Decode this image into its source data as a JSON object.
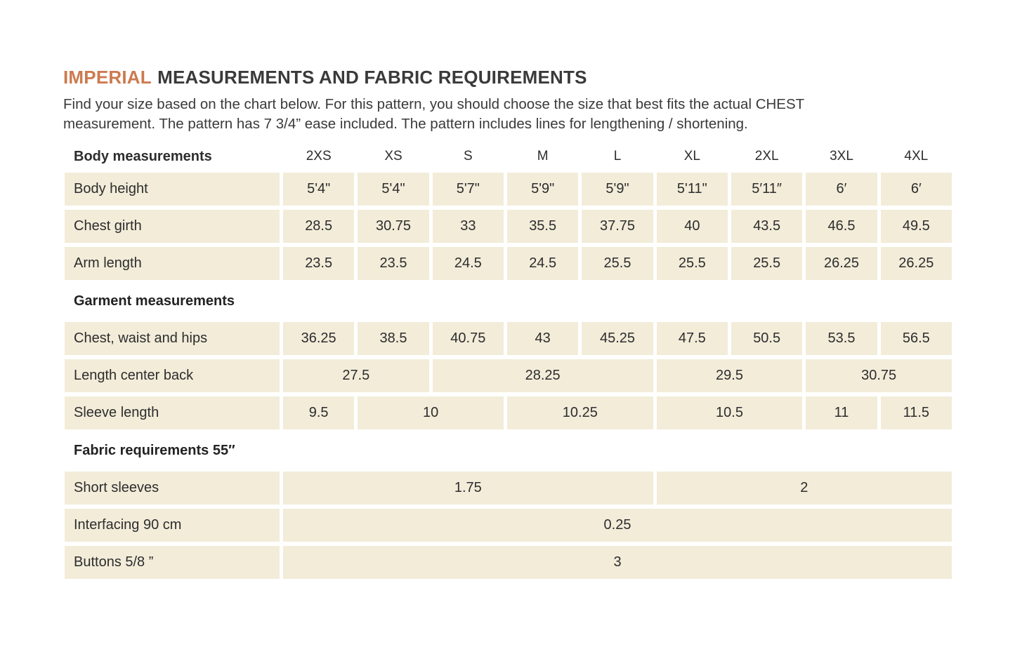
{
  "page": {
    "title_accent": "IMPERIAL",
    "title_rest": "MEASUREMENTS AND FABRIC REQUIREMENTS",
    "intro_lines": [
      "Find your size based on the chart below. For this pattern, you should choose the size that best fits the actual CHEST",
      "measurement. The pattern has 7 3/4” ease included. The pattern includes lines for lengthening / shortening."
    ]
  },
  "colors": {
    "accent": "#cd7a50",
    "cell_bg": "#f2ecd9",
    "text": "#2f2f2f"
  },
  "table": {
    "corner_label": "Body measurements",
    "sizes": [
      "2XS",
      "XS",
      "S",
      "M",
      "L",
      "XL",
      "2XL",
      "3XL",
      "4XL"
    ],
    "rows": [
      {
        "kind": "data",
        "label": "Body height",
        "cells": [
          {
            "text": "5'4\"",
            "span": 1
          },
          {
            "text": "5'4\"",
            "span": 1
          },
          {
            "text": "5'7\"",
            "span": 1
          },
          {
            "text": "5'9\"",
            "span": 1
          },
          {
            "text": "5'9\"",
            "span": 1
          },
          {
            "text": "5'11\"",
            "span": 1
          },
          {
            "text": "5′11″",
            "span": 1
          },
          {
            "text": "6′",
            "span": 1
          },
          {
            "text": "6′",
            "span": 1
          }
        ]
      },
      {
        "kind": "data",
        "label": "Chest girth",
        "cells": [
          {
            "text": "28.5",
            "span": 1
          },
          {
            "text": "30.75",
            "span": 1
          },
          {
            "text": "33",
            "span": 1
          },
          {
            "text": "35.5",
            "span": 1
          },
          {
            "text": "37.75",
            "span": 1
          },
          {
            "text": "40",
            "span": 1
          },
          {
            "text": "43.5",
            "span": 1
          },
          {
            "text": "46.5",
            "span": 1
          },
          {
            "text": "49.5",
            "span": 1
          }
        ]
      },
      {
        "kind": "data",
        "label": "Arm length",
        "cells": [
          {
            "text": "23.5",
            "span": 1
          },
          {
            "text": "23.5",
            "span": 1
          },
          {
            "text": "24.5",
            "span": 1
          },
          {
            "text": "24.5",
            "span": 1
          },
          {
            "text": "25.5",
            "span": 1
          },
          {
            "text": "25.5",
            "span": 1
          },
          {
            "text": "25.5",
            "span": 1
          },
          {
            "text": "26.25",
            "span": 1
          },
          {
            "text": "26.25",
            "span": 1
          }
        ]
      },
      {
        "kind": "section",
        "label": "Garment measurements"
      },
      {
        "kind": "data",
        "label": "Chest, waist and hips",
        "cells": [
          {
            "text": "36.25",
            "span": 1
          },
          {
            "text": "38.5",
            "span": 1
          },
          {
            "text": "40.75",
            "span": 1
          },
          {
            "text": "43",
            "span": 1
          },
          {
            "text": "45.25",
            "span": 1
          },
          {
            "text": "47.5",
            "span": 1
          },
          {
            "text": "50.5",
            "span": 1
          },
          {
            "text": "53.5",
            "span": 1
          },
          {
            "text": "56.5",
            "span": 1
          }
        ]
      },
      {
        "kind": "data",
        "label": "Length center back",
        "cells": [
          {
            "text": "27.5",
            "span": 2
          },
          {
            "text": "28.25",
            "span": 3
          },
          {
            "text": "29.5",
            "span": 2
          },
          {
            "text": "30.75",
            "span": 2
          }
        ]
      },
      {
        "kind": "data",
        "label": "Sleeve length",
        "cells": [
          {
            "text": "9.5",
            "span": 1
          },
          {
            "text": "10",
            "span": 2
          },
          {
            "text": "10.25",
            "span": 2
          },
          {
            "text": "10.5",
            "span": 2
          },
          {
            "text": "11",
            "span": 1
          },
          {
            "text": "11.5",
            "span": 1
          }
        ]
      },
      {
        "kind": "section",
        "label": "Fabric requirements 55″"
      },
      {
        "kind": "data",
        "label": "Short sleeves",
        "cells": [
          {
            "text": "1.75",
            "span": 5
          },
          {
            "text": "2",
            "span": 4
          }
        ]
      },
      {
        "kind": "data",
        "label": "Interfacing 90 cm",
        "cells": [
          {
            "text": "0.25",
            "span": 9
          }
        ]
      },
      {
        "kind": "data",
        "label": "Buttons 5/8 ”",
        "cells": [
          {
            "text": "3",
            "span": 9
          }
        ]
      }
    ]
  }
}
